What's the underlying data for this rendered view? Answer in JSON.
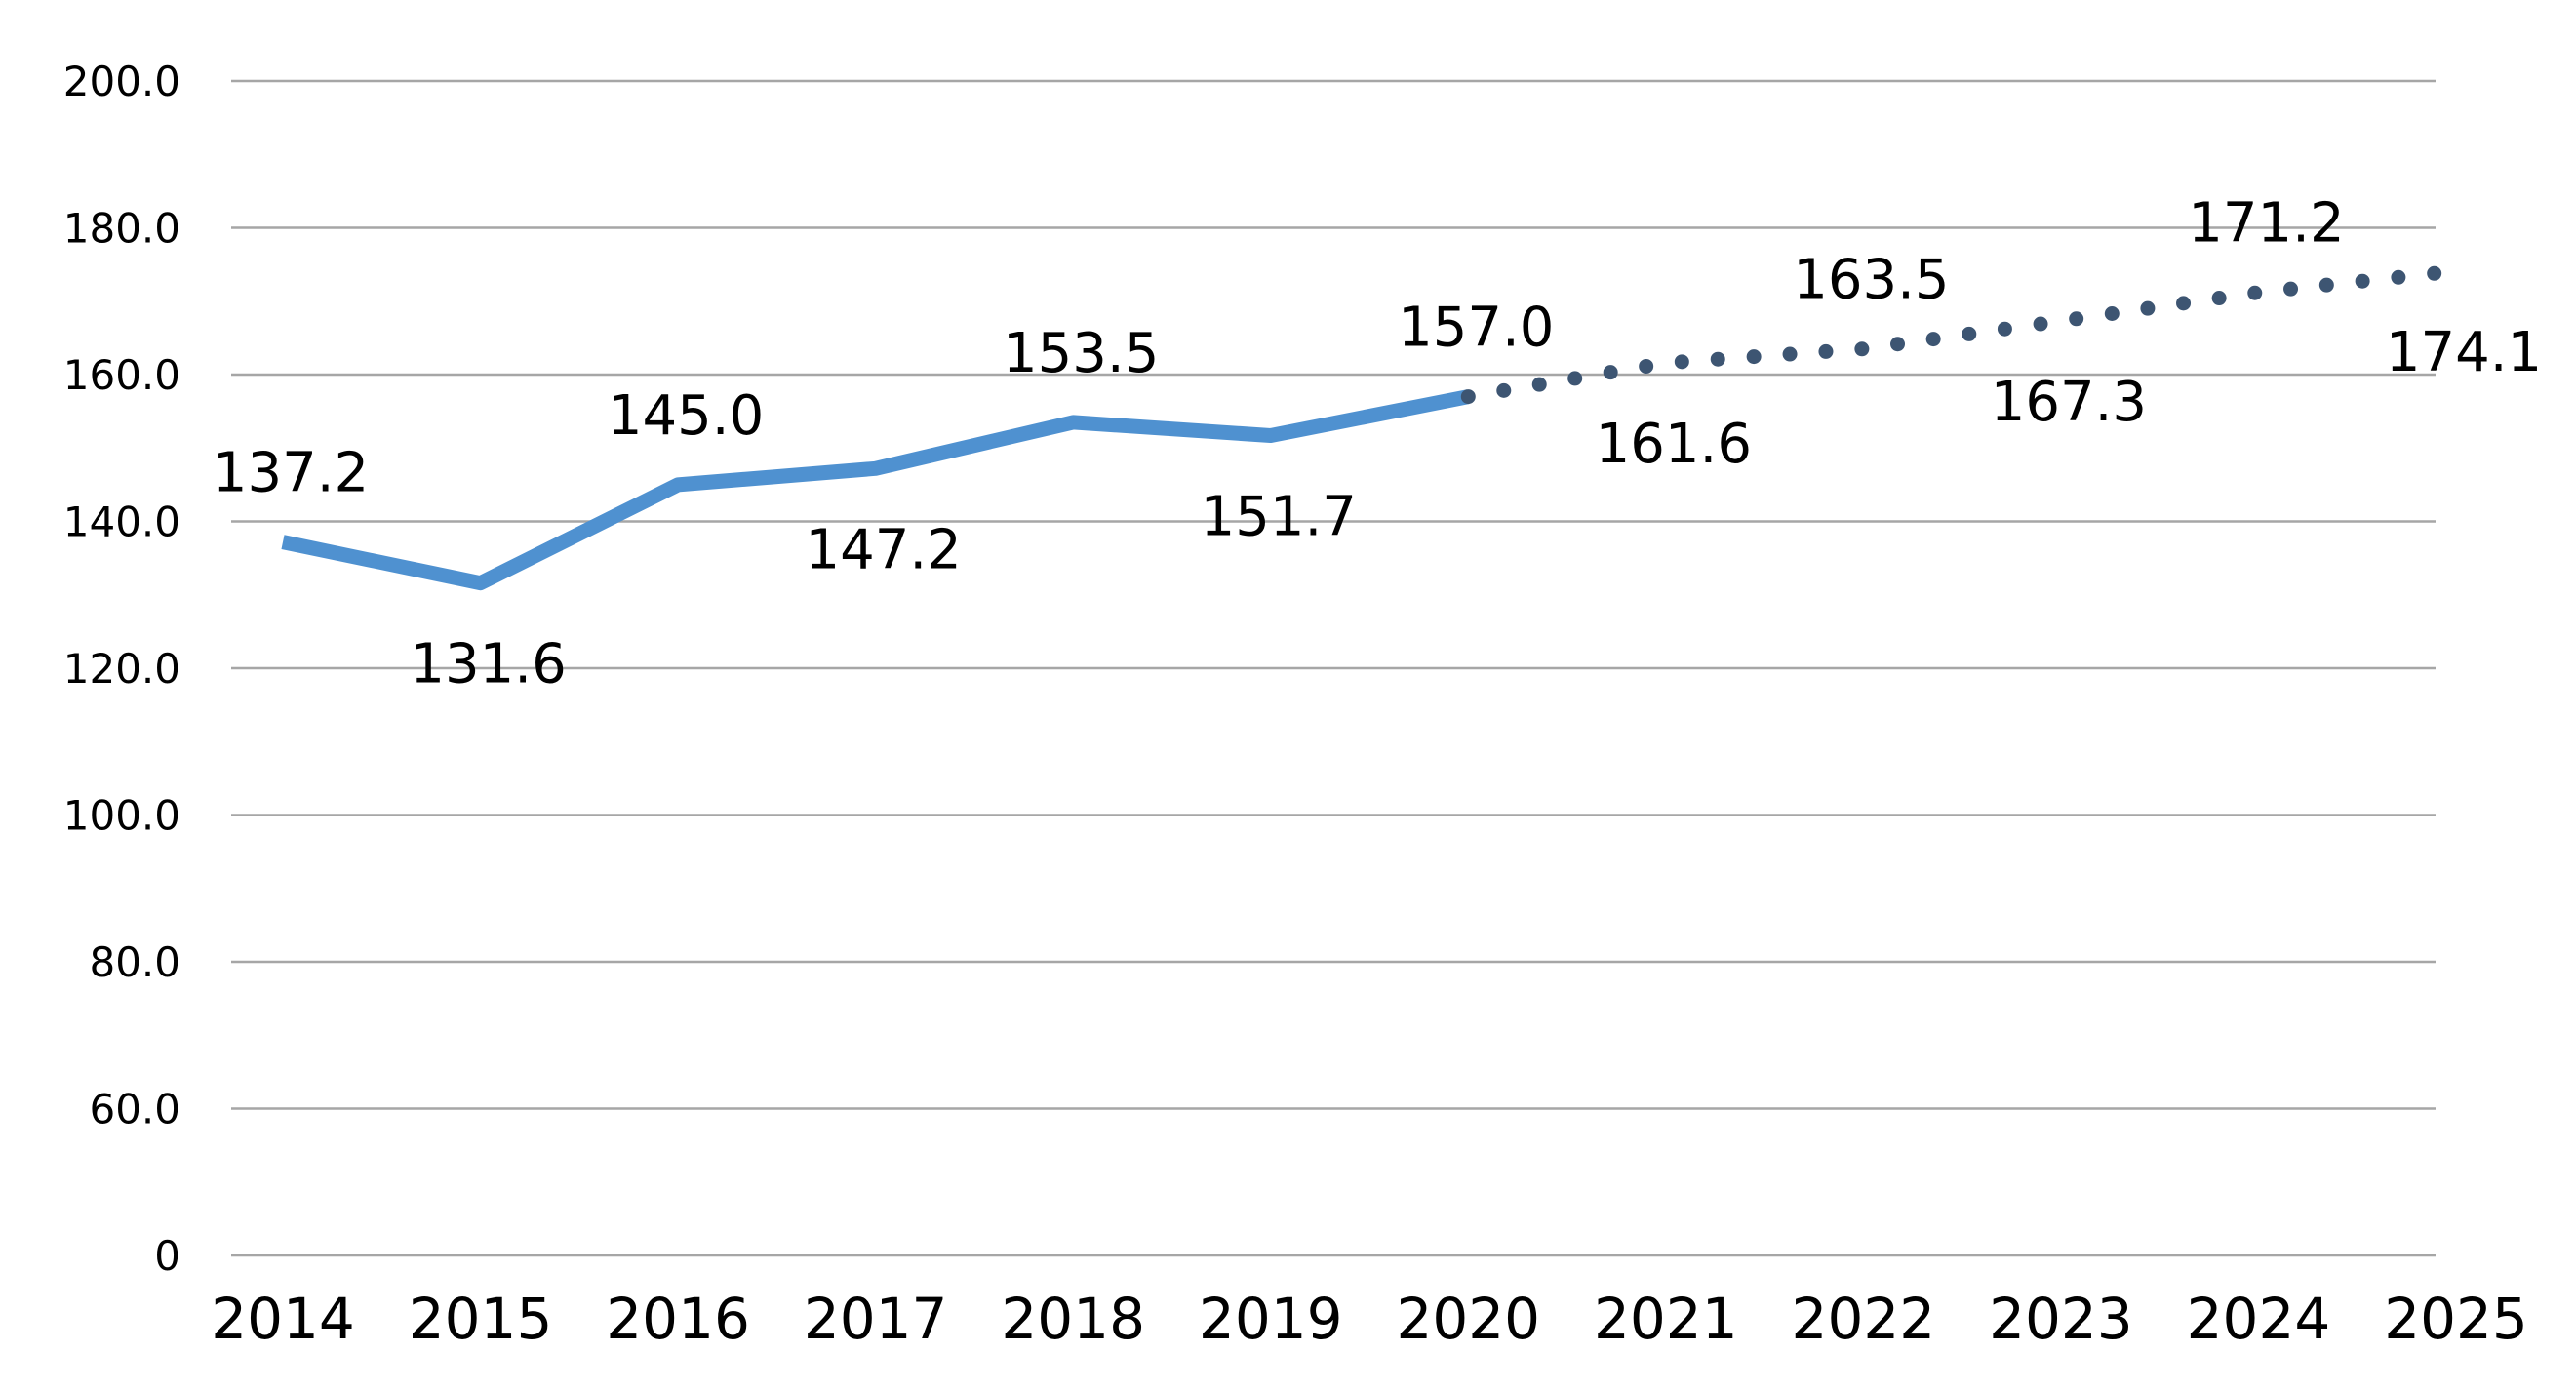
{
  "chart_data": {
    "type": "line",
    "title": "",
    "xlabel": "",
    "ylabel": "",
    "ylim": [
      0,
      200
    ],
    "y_ticks": [
      "0",
      "60.0",
      "80.0",
      "100.0",
      "120.0",
      "140.0",
      "160.0",
      "180.0",
      "200.0"
    ],
    "categories": [
      "2014",
      "2015",
      "2016",
      "2017",
      "2018",
      "2019",
      "2020",
      "2021",
      "2022",
      "2023",
      "2024",
      "2025"
    ],
    "grid": true,
    "legend": "none",
    "series": [
      {
        "style": "solid",
        "color": "#4f91d0",
        "x": [
          "2014",
          "2015",
          "2016",
          "2017",
          "2018",
          "2019",
          "2020"
        ],
        "values": [
          137.2,
          131.6,
          145.0,
          147.2,
          153.5,
          151.7,
          157.0
        ],
        "labels": [
          "137.2",
          "131.6",
          "145.0",
          "147.2",
          "153.5",
          "151.7",
          "157.0"
        ],
        "label_positions": [
          "above",
          "below",
          "above",
          "below",
          "above",
          "below",
          "above"
        ]
      },
      {
        "style": "dotted",
        "color": "#3d5572",
        "x": [
          "2020",
          "2021",
          "2022",
          "2023",
          "2024",
          "2025"
        ],
        "values": [
          157.0,
          161.6,
          163.5,
          167.3,
          171.2,
          174.1
        ],
        "labels": [
          "",
          "161.6",
          "163.5",
          "167.3",
          "171.2",
          "174.1"
        ],
        "label_positions": [
          "none",
          "below",
          "above",
          "below",
          "above",
          "below"
        ]
      }
    ]
  }
}
